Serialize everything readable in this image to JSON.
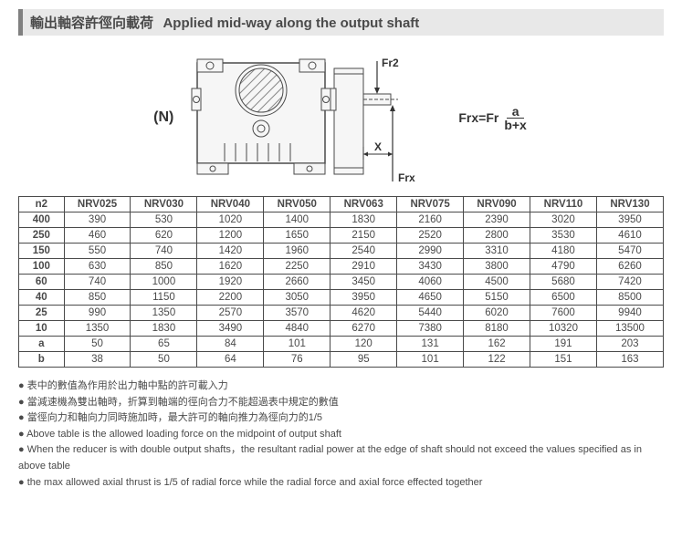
{
  "title_cn": "輸出軸容許徑向載荷",
  "title_en": "Applied mid-way along the output shaft",
  "label_N": "(N)",
  "diagram_labels": {
    "fr2": "Fr2",
    "frx": "Frx",
    "x": "X"
  },
  "formula": {
    "lhs": "Frx=Fr",
    "num": "a",
    "den": "b+x"
  },
  "table": {
    "columns": [
      "n2",
      "NRV025",
      "NRV030",
      "NRV040",
      "NRV050",
      "NRV063",
      "NRV075",
      "NRV090",
      "NRV110",
      "NRV130"
    ],
    "rows": [
      [
        "400",
        390,
        530,
        1020,
        1400,
        1830,
        2160,
        2390,
        3020,
        3950
      ],
      [
        "250",
        460,
        620,
        1200,
        1650,
        2150,
        2520,
        2800,
        3530,
        4610
      ],
      [
        "150",
        550,
        740,
        1420,
        1960,
        2540,
        2990,
        3310,
        4180,
        5470
      ],
      [
        "100",
        630,
        850,
        1620,
        2250,
        2910,
        3430,
        3800,
        4790,
        6260
      ],
      [
        "60",
        740,
        1000,
        1920,
        2660,
        3450,
        4060,
        4500,
        5680,
        7420
      ],
      [
        "40",
        850,
        1150,
        2200,
        3050,
        3950,
        4650,
        5150,
        6500,
        8500
      ],
      [
        "25",
        990,
        1350,
        2570,
        3570,
        4620,
        5440,
        6020,
        7600,
        9940
      ],
      [
        "10",
        1350,
        1830,
        3490,
        4840,
        6270,
        7380,
        8180,
        10320,
        13500
      ],
      [
        "a",
        50,
        65,
        84,
        101,
        120,
        131,
        162,
        191,
        203
      ],
      [
        "b",
        38,
        50,
        64,
        76,
        95,
        101,
        122,
        151,
        163
      ]
    ],
    "col_widths_pct": [
      7,
      10.3,
      10.3,
      10.3,
      10.3,
      10.3,
      10.3,
      10.3,
      10.3,
      10.3
    ],
    "border_color": "#4a4a4a",
    "font_size": 11.5
  },
  "notes": [
    "表中的數值為作用於出力軸中點的許可載入力",
    "當減速機為雙出軸時，折算到軸端的徑向合力不能超過表中規定的數值",
    "當徑向力和軸向力同時施加時，最大許可的軸向推力為徑向力的1/5",
    "Above table is the allowed loading force on the midpoint of output shaft",
    "When the reducer is with double output shafts，the resultant radial power at the edge of shaft should not exceed the values specified as in above table",
    "the max allowed axial thrust is 1/5 of radial force while the radial force and axial force effected together"
  ],
  "diagram_style": {
    "stroke": "#4a4a4a",
    "fill": "#f6f6f6",
    "hatch": "#888888"
  }
}
